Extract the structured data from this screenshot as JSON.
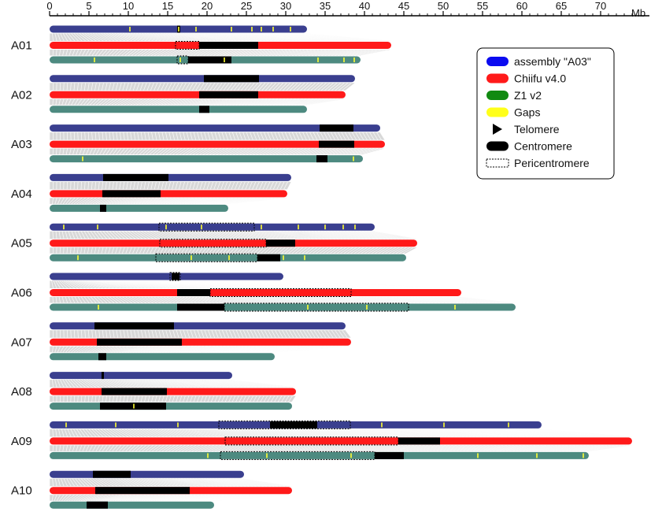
{
  "chart_data": {
    "type": "chromosome-synteny-ideogram",
    "unit": "Mb",
    "axis": {
      "min": 0,
      "max": 74,
      "ticks": [
        0,
        5,
        10,
        15,
        20,
        25,
        30,
        35,
        40,
        45,
        50,
        55,
        60,
        65,
        70
      ]
    },
    "legend": [
      {
        "label": "assembly \"A03\"",
        "symbol": "bar",
        "color": "#0b0bf0"
      },
      {
        "label": "Chiifu v4.0",
        "symbol": "bar",
        "color": "#ff1a1a"
      },
      {
        "label": "Z1 v2",
        "symbol": "bar",
        "color": "#118a11"
      },
      {
        "label": "Gaps",
        "symbol": "bar",
        "color": "#ffff1a"
      },
      {
        "label": "Telomere",
        "symbol": "triangle",
        "color": "#000000"
      },
      {
        "label": "Centromere",
        "symbol": "bar",
        "color": "#000000"
      },
      {
        "label": "Pericentromere",
        "symbol": "dashed-box",
        "color": "#000000"
      }
    ],
    "track_colors": {
      "assembly": "#3a3f8f",
      "chiifu": "#ff1a1a",
      "z1": "#4d8a80",
      "synteny": "#b8b8b8",
      "gap": "#ffff33"
    },
    "chromosomes": [
      {
        "name": "A01",
        "assembly": {
          "length": 32.7,
          "centromere": [
            16.2,
            16.6
          ],
          "gaps": [
            10.2,
            16.4,
            18.6,
            23.1,
            25.7,
            26.9,
            28.4,
            30.6
          ]
        },
        "chiifu": {
          "length": 43.4,
          "centromere": [
            19.0,
            26.5
          ],
          "pericentromere": [
            16.0,
            19.0
          ]
        },
        "z1": {
          "length": 39.5,
          "centromere": [
            17.6,
            23.1
          ],
          "pericentromere": [
            16.2,
            17.6
          ],
          "gaps": [
            5.7,
            16.6,
            22.2,
            34.1,
            37.4,
            38.7
          ]
        }
      },
      {
        "name": "A02",
        "assembly": {
          "length": 38.8,
          "centromere": [
            19.6,
            26.6
          ]
        },
        "chiifu": {
          "length": 37.6,
          "centromere": [
            19.0,
            26.5
          ]
        },
        "z1": {
          "length": 32.7,
          "centromere": [
            19.0,
            20.3
          ]
        }
      },
      {
        "name": "A03",
        "assembly": {
          "length": 42.0,
          "centromere": [
            34.3,
            38.6
          ]
        },
        "chiifu": {
          "length": 42.6,
          "centromere": [
            34.2,
            38.7
          ]
        },
        "z1": {
          "length": 39.8,
          "centromere": [
            33.9,
            35.3
          ],
          "gaps": [
            4.2,
            38.6
          ]
        }
      },
      {
        "name": "A04",
        "assembly": {
          "length": 30.7,
          "centromere": [
            6.8,
            15.1
          ]
        },
        "chiifu": {
          "length": 30.2,
          "centromere": [
            6.7,
            14.1
          ]
        },
        "z1": {
          "length": 22.7,
          "centromere": [
            6.4,
            7.2
          ]
        }
      },
      {
        "name": "A05",
        "assembly": {
          "length": 41.3,
          "pericentromere": [
            13.9,
            26.0
          ],
          "gaps": [
            1.8,
            6.1,
            14.8,
            19.3,
            26.9,
            31.6,
            35.0,
            37.3,
            38.8
          ]
        },
        "chiifu": {
          "length": 46.7,
          "centromere": [
            27.5,
            31.2
          ],
          "pericentromere": [
            14.0,
            27.5
          ]
        },
        "z1": {
          "length": 45.3,
          "centromere": [
            26.4,
            29.3
          ],
          "pericentromere": [
            13.5,
            26.4
          ],
          "gaps": [
            3.6,
            18.0,
            22.8,
            29.7,
            32.4
          ]
        }
      },
      {
        "name": "A06",
        "assembly": {
          "length": 29.7,
          "centromere": [
            15.5,
            16.5
          ],
          "pericentromere": [
            15.3,
            16.6
          ]
        },
        "chiifu": {
          "length": 52.3,
          "centromere": [
            16.2,
            20.4
          ],
          "pericentromere": [
            20.4,
            38.3
          ]
        },
        "z1": {
          "length": 59.2,
          "centromere": [
            16.2,
            22.2
          ],
          "pericentromere": [
            22.2,
            45.6
          ],
          "gaps": [
            6.2,
            32.8,
            40.3,
            51.5
          ]
        }
      },
      {
        "name": "A07",
        "assembly": {
          "length": 37.6,
          "centromere": [
            5.7,
            15.8
          ]
        },
        "chiifu": {
          "length": 38.3,
          "centromere": [
            6.0,
            16.8
          ]
        },
        "z1": {
          "length": 28.6,
          "centromere": [
            6.2,
            7.2
          ]
        }
      },
      {
        "name": "A08",
        "assembly": {
          "length": 23.2,
          "centromere": [
            6.6,
            6.9
          ]
        },
        "chiifu": {
          "length": 31.3,
          "centromere": [
            6.6,
            14.9
          ]
        },
        "z1": {
          "length": 30.8,
          "centromere": [
            6.4,
            14.8
          ],
          "gaps": [
            10.7
          ]
        }
      },
      {
        "name": "A09",
        "assembly": {
          "length": 62.5,
          "centromere": [
            28.0,
            34.0
          ],
          "pericentromere": [
            21.5,
            38.2
          ],
          "gaps": [
            2.1,
            8.4,
            16.3,
            42.2,
            50.1,
            58.3
          ]
        },
        "chiifu": {
          "length": 74.0,
          "centromere": [
            44.3,
            49.6
          ],
          "pericentromere": [
            22.3,
            44.3
          ]
        },
        "z1": {
          "length": 68.5,
          "centromere": [
            41.3,
            45.0
          ],
          "pericentromere": [
            21.7,
            41.3
          ],
          "gaps": [
            20.1,
            27.6,
            38.3,
            54.4,
            61.9,
            67.8
          ]
        }
      },
      {
        "name": "A10",
        "assembly": {
          "length": 24.7,
          "centromere": [
            5.5,
            10.3
          ]
        },
        "chiifu": {
          "length": 30.8,
          "centromere": [
            5.8,
            17.8
          ]
        },
        "z1": {
          "length": 20.9,
          "centromere": [
            4.7,
            7.4
          ]
        }
      }
    ]
  }
}
